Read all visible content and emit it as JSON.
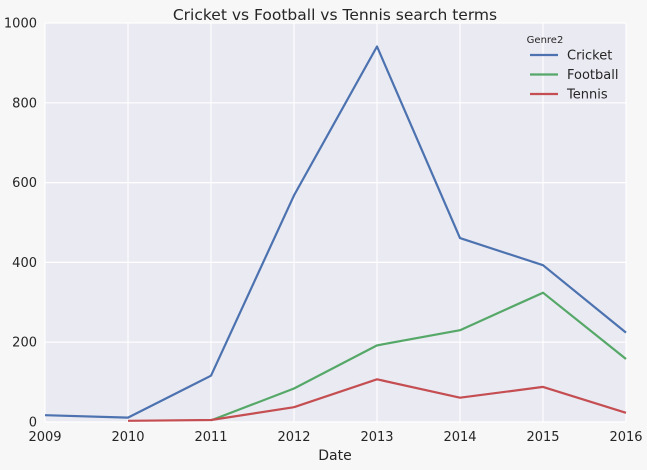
{
  "chart_data": {
    "type": "line",
    "title": "Cricket vs Football vs Tennis search terms",
    "xlabel": "Date",
    "ylabel": "",
    "x": [
      2009,
      2010,
      2011,
      2012,
      2013,
      2014,
      2015,
      2016
    ],
    "xticks": [
      "2009",
      "2010",
      "2011",
      "2012",
      "2013",
      "2014",
      "2015",
      "2016"
    ],
    "yticks": [
      "0",
      "200",
      "400",
      "600",
      "800",
      "1000"
    ],
    "xlim": [
      2009,
      2016
    ],
    "ylim": [
      0,
      1000
    ],
    "grid": true,
    "legend": {
      "title": "Genre2",
      "placement": "top-right"
    },
    "series": [
      {
        "name": "Cricket",
        "color": "#4c72b0",
        "values": [
          17,
          11,
          116,
          568,
          941,
          461,
          393,
          224
        ]
      },
      {
        "name": "Football",
        "color": "#55a868",
        "values": [
          null,
          null,
          4,
          84,
          192,
          230,
          324,
          158
        ]
      },
      {
        "name": "Tennis",
        "color": "#c44e52",
        "values": [
          null,
          3,
          5,
          37,
          107,
          61,
          88,
          23
        ]
      }
    ]
  }
}
